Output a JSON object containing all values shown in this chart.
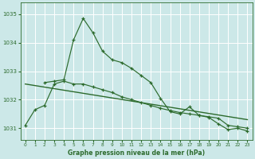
{
  "title": "Graphe pression niveau de la mer (hPa)",
  "bg_color": "#cce8e8",
  "grid_color": "#ffffff",
  "line_color1": "#2d6b2d",
  "line_color2": "#2d6b2d",
  "line_color_trend": "#2d6b2d",
  "xmin": -0.5,
  "xmax": 23.5,
  "ymin": 1030.6,
  "ymax": 1035.4,
  "yticks": [
    1031,
    1032,
    1033,
    1034,
    1035
  ],
  "xticks": [
    0,
    1,
    2,
    3,
    4,
    5,
    6,
    7,
    8,
    9,
    10,
    11,
    12,
    13,
    14,
    15,
    16,
    17,
    18,
    19,
    20,
    21,
    22,
    23
  ],
  "series1_x": [
    0,
    1,
    2,
    3,
    4,
    5,
    6,
    7,
    8,
    9,
    10,
    11,
    12,
    13,
    14,
    15,
    16,
    17,
    18,
    19,
    20,
    21,
    22,
    23
  ],
  "series1_y": [
    1031.1,
    1031.65,
    1031.8,
    1032.55,
    1032.65,
    1032.55,
    1032.55,
    1032.45,
    1032.35,
    1032.25,
    1032.1,
    1032.0,
    1031.9,
    1031.8,
    1031.7,
    1031.62,
    1031.55,
    1031.5,
    1031.45,
    1031.4,
    1031.35,
    1031.1,
    1031.05,
    1031.0
  ],
  "series2_x": [
    2,
    3,
    4,
    5,
    6,
    7,
    8,
    9,
    10,
    11,
    12,
    13,
    14,
    15,
    16,
    17,
    18,
    19,
    20,
    21,
    22,
    23
  ],
  "series2_y": [
    1032.6,
    1032.65,
    1032.7,
    1034.1,
    1034.85,
    1034.35,
    1033.7,
    1033.4,
    1033.3,
    1033.1,
    1032.85,
    1032.6,
    1032.05,
    1031.58,
    1031.5,
    1031.75,
    1031.45,
    1031.38,
    1031.15,
    1030.95,
    1031.0,
    1030.9
  ],
  "trend_x": [
    0,
    23
  ],
  "trend_y": [
    1032.55,
    1031.3
  ]
}
